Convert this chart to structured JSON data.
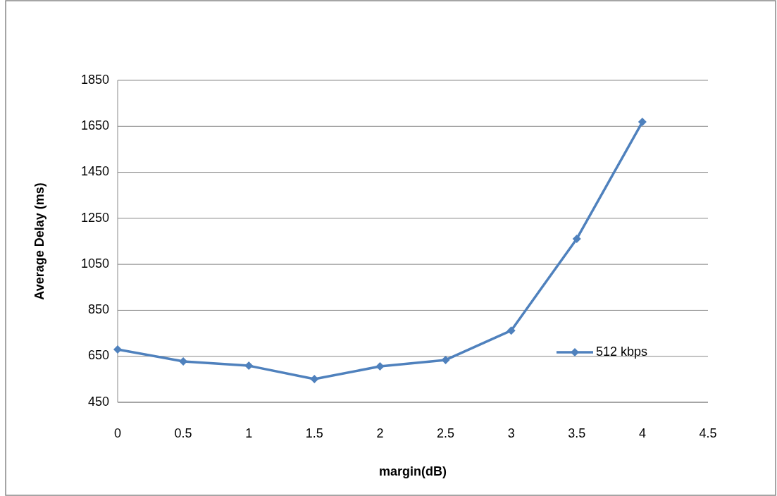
{
  "chart_data": {
    "type": "line",
    "xlabel": "margin(dB)",
    "ylabel": "Average Delay (ms)",
    "x": [
      0,
      0.5,
      1,
      1.5,
      2,
      2.5,
      3,
      3.5,
      4
    ],
    "series": [
      {
        "name": "512 kbps",
        "color": "#4f81bd",
        "values": [
          680,
          628,
          609,
          551,
          606,
          634,
          762,
          1161,
          1669
        ]
      }
    ],
    "xlim": [
      0,
      4.5
    ],
    "xticks": [
      0,
      0.5,
      1,
      1.5,
      2,
      2.5,
      3,
      3.5,
      4,
      4.5
    ],
    "ylim": [
      450,
      1850
    ],
    "yticks": [
      450,
      650,
      850,
      1050,
      1250,
      1450,
      1650,
      1850
    ],
    "grid": "y",
    "legend": "right",
    "marker": "diamond",
    "line_style": "solid"
  }
}
